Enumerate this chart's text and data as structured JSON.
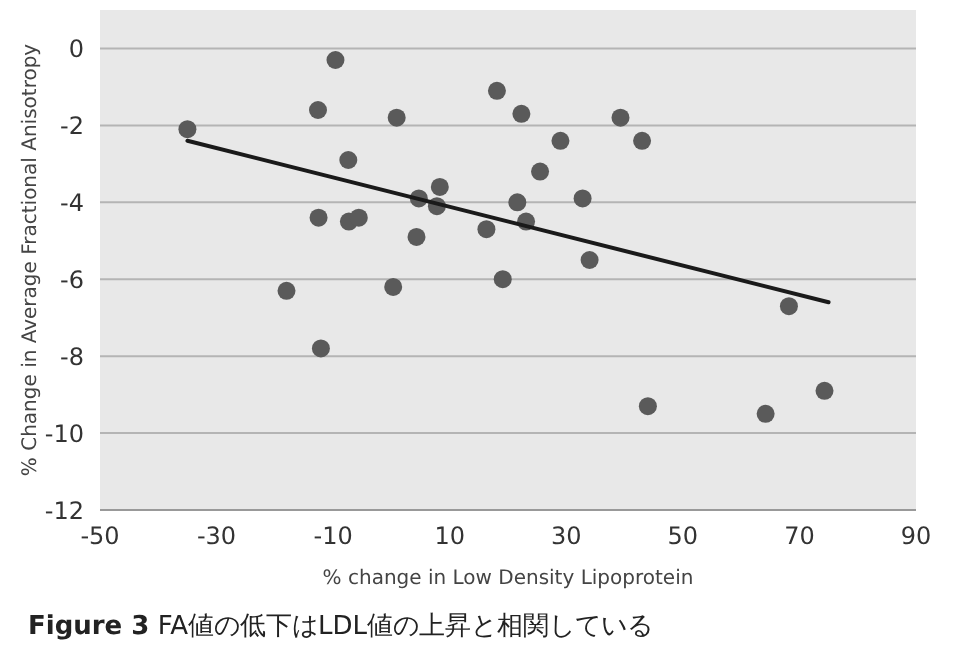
{
  "chart_data": {
    "type": "scatter",
    "xlabel": "% change in Low Density Lipoprotein",
    "ylabel": "% Change in Average Fractional Anisotropy",
    "annotations": [
      "**Figure 3**  FA値の低下はLDL値の上昇と相関している"
    ],
    "xlim": [
      -50,
      90
    ],
    "xticks": [
      -50,
      -30,
      -10,
      10,
      30,
      50,
      70,
      90
    ],
    "ylim": [
      -12,
      1
    ],
    "yticks": [
      -12,
      -10,
      -8,
      -6,
      -4,
      -2,
      0
    ],
    "grid": "y",
    "marker": "circle",
    "series": [
      {
        "color": "#5a5a5a",
        "x": [
          -35,
          -9.6,
          -12.6,
          0.9,
          -7.4,
          8.3,
          4.7,
          7.8,
          -12.5,
          -7.3,
          -5.6,
          4.3,
          -18,
          0.3,
          -12.1,
          16.3,
          18.1,
          22.3,
          39.3,
          29,
          43,
          25.5,
          21.6,
          32.8,
          23.1,
          34,
          19.1,
          68.2,
          74.3,
          44,
          64.2
        ],
        "values": [
          -2.1,
          -0.3,
          -1.6,
          -1.8,
          -2.9,
          -3.6,
          -3.9,
          -4.1,
          -4.4,
          -4.5,
          -4.4,
          -4.9,
          -6.3,
          -6.2,
          -7.8,
          -4.7,
          -1.1,
          -1.7,
          -1.8,
          -2.4,
          -2.4,
          -3.2,
          -4,
          -3.9,
          -4.5,
          -5.5,
          -6,
          -6.7,
          -8.9,
          -9.3,
          -9.5
        ]
      },
      {
        "type": "line",
        "marker": "none",
        "color": "#1a1a1a",
        "x": [
          -35,
          75
        ],
        "values": [
          -2.4,
          -6.6
        ]
      }
    ]
  }
}
